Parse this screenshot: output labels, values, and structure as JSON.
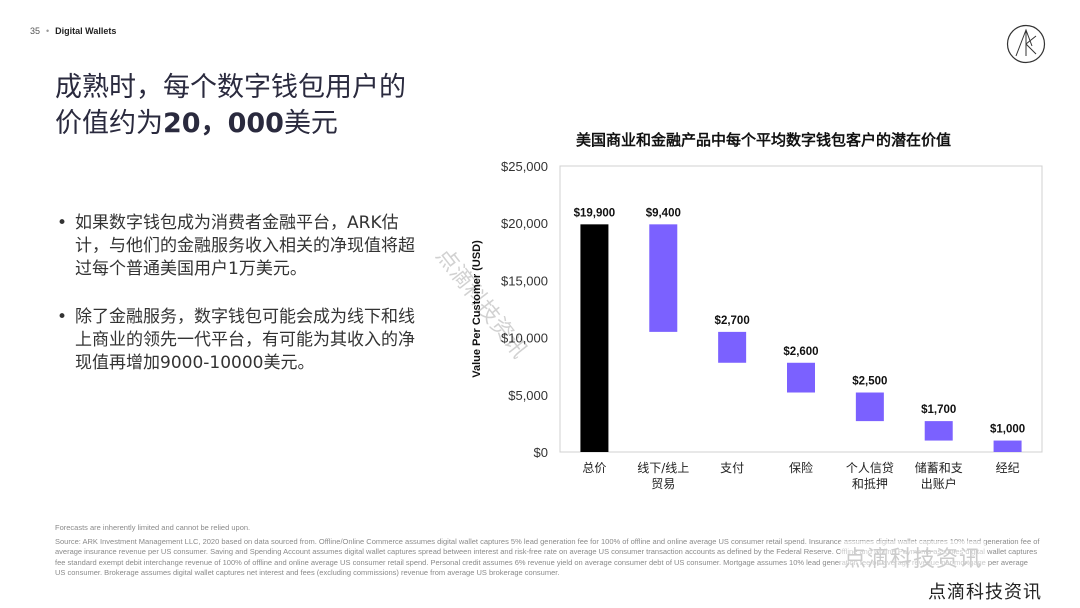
{
  "header": {
    "page_number": "35",
    "section": "Digital Wallets"
  },
  "title": {
    "line1": "成熟时，每个数字钱包用户的",
    "line2_prefix": "价值约为",
    "line2_value": "20，000",
    "line2_suffix": "美元"
  },
  "bullets": [
    "如果数字钱包成为消费者金融平台，ARK估计，与他们的金融服务收入相关的净现值将超过每个普通美国用户1万美元。",
    "除了金融服务，数字钱包可能会成为线下和线上商业的领先一代平台，有可能为其收入的净现值再增加9000-10000美元。"
  ],
  "chart_data": {
    "type": "waterfall",
    "title": "美国商业和金融产品中每个平均数字钱包客户的潜在价值",
    "ylabel": "Value Per Customer (USD)",
    "ylim": [
      0,
      25000
    ],
    "yticks": [
      0,
      5000,
      10000,
      15000,
      20000,
      25000
    ],
    "ytick_labels": [
      "$0",
      "$5,000",
      "$10,000",
      "$15,000",
      "$20,000",
      "$25,000"
    ],
    "categories": [
      "总价",
      "线下/线上贸易",
      "支付",
      "保险",
      "个人信贷和抵押",
      "储蓄和支出账户",
      "经纪"
    ],
    "category_lines": [
      [
        "总价"
      ],
      [
        "线下/线上",
        "贸易"
      ],
      [
        "支付"
      ],
      [
        "保险"
      ],
      [
        "个人信贷",
        "和抵押"
      ],
      [
        "储蓄和支",
        "出账户"
      ],
      [
        "经纪"
      ]
    ],
    "values": [
      19900,
      9400,
      2700,
      2600,
      2500,
      1700,
      1000
    ],
    "value_labels": [
      "$19,900",
      "$9,400",
      "$2,700",
      "$2,600",
      "$2,500",
      "$1,700",
      "$1,000"
    ],
    "bar_kind": [
      "total",
      "component",
      "component",
      "component",
      "component",
      "component",
      "component"
    ],
    "colors": {
      "total": "#000000",
      "component": "#7b61ff",
      "grid": "#d0d0d0"
    },
    "grid": false
  },
  "footnote": {
    "line1": "Forecasts are inherently limited and cannot be relied upon.",
    "body": "Source: ARK Investment Management LLC, 2020 based on data sourced from. Offline/Online Commerce assumes digital wallet captures 5% lead generation fee for 100% of offline and online average US consumer retail spend. Insurance assumes digital wallet captures 10% lead generation fee of average insurance revenue per US consumer. Saving and Spending Account assumes digital wallet captures spread between interest and risk-free rate on average US consumer transaction accounts as defined by the Federal Reserve. Offline and Online Payments assumes digital wallet captures fee standard exempt debit interchange revenue of 100% of offline and online average US consumer retail spend. Personal credit assumes 6% revenue yield on average consumer debt of US consumer. Mortgage assumes 10% lead generation fee on average revenue per mortgage per average US consumer. Brokerage assumes digital wallet captures net interest and fees (excluding commissions) revenue from average US brokerage consumer."
  },
  "watermarks": {
    "diagonal": "点滴科技资讯",
    "overlay": "点滴科技资讯",
    "corner": "点滴科技资讯"
  }
}
